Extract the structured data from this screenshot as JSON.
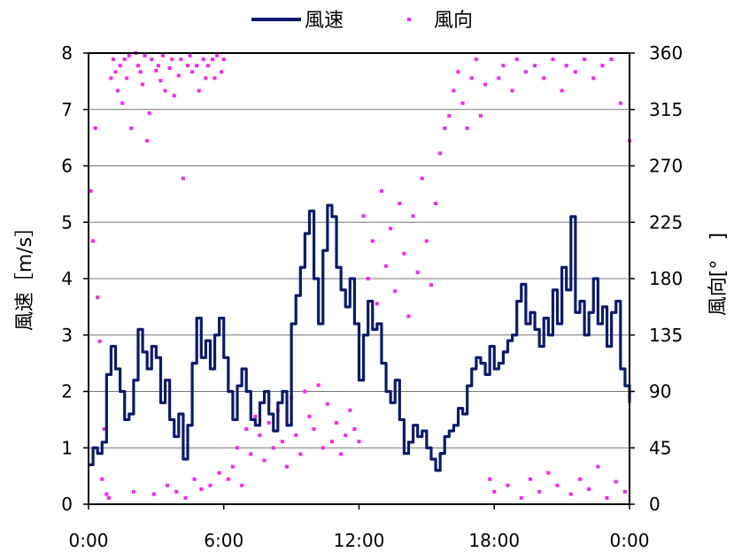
{
  "chart_data": {
    "type": "line",
    "legend": {
      "placement": "top-center",
      "entries": [
        {
          "label": "風速",
          "kind": "line",
          "color": "#0a1a6e"
        },
        {
          "label": "風向",
          "kind": "marker",
          "color": "#ff22ee"
        }
      ]
    },
    "x": {
      "unit": "hour",
      "range": [
        0,
        24
      ],
      "tick_labels": [
        "0:00",
        "6:00",
        "12:00",
        "18:00",
        "0:00"
      ]
    },
    "y_left": {
      "label": "風速［m/s］",
      "range": [
        0,
        8
      ],
      "ticks": [
        0,
        1,
        2,
        3,
        4,
        5,
        6,
        7,
        8
      ]
    },
    "y_right": {
      "label": "風向[°　]",
      "range": [
        0,
        360
      ],
      "ticks": [
        0,
        45,
        90,
        135,
        180,
        225,
        270,
        315,
        360
      ]
    },
    "grid": {
      "horizontal": true,
      "vertical": false
    },
    "series": [
      {
        "name": "風速",
        "axis": "left",
        "type": "line",
        "color": "#0a1a6e",
        "points": [
          [
            0.0,
            0.7
          ],
          [
            0.2,
            1.0
          ],
          [
            0.4,
            0.9
          ],
          [
            0.6,
            1.1
          ],
          [
            0.8,
            2.3
          ],
          [
            1.0,
            2.8
          ],
          [
            1.2,
            2.4
          ],
          [
            1.4,
            2.0
          ],
          [
            1.6,
            1.5
          ],
          [
            1.8,
            1.6
          ],
          [
            2.0,
            2.2
          ],
          [
            2.2,
            3.1
          ],
          [
            2.4,
            2.7
          ],
          [
            2.6,
            2.4
          ],
          [
            2.8,
            2.8
          ],
          [
            3.0,
            2.6
          ],
          [
            3.2,
            1.8
          ],
          [
            3.4,
            2.2
          ],
          [
            3.6,
            1.5
          ],
          [
            3.8,
            1.2
          ],
          [
            4.0,
            1.6
          ],
          [
            4.2,
            0.8
          ],
          [
            4.4,
            1.4
          ],
          [
            4.6,
            2.5
          ],
          [
            4.8,
            3.3
          ],
          [
            5.0,
            2.6
          ],
          [
            5.2,
            2.9
          ],
          [
            5.4,
            2.4
          ],
          [
            5.6,
            3.0
          ],
          [
            5.8,
            3.3
          ],
          [
            6.0,
            2.6
          ],
          [
            6.2,
            2.0
          ],
          [
            6.4,
            1.5
          ],
          [
            6.6,
            2.1
          ],
          [
            6.8,
            2.4
          ],
          [
            7.0,
            2.0
          ],
          [
            7.2,
            1.5
          ],
          [
            7.4,
            1.4
          ],
          [
            7.6,
            1.8
          ],
          [
            7.8,
            2.0
          ],
          [
            8.0,
            1.6
          ],
          [
            8.2,
            1.3
          ],
          [
            8.4,
            1.8
          ],
          [
            8.6,
            2.0
          ],
          [
            8.8,
            1.4
          ],
          [
            9.0,
            3.2
          ],
          [
            9.2,
            3.7
          ],
          [
            9.4,
            4.2
          ],
          [
            9.6,
            4.8
          ],
          [
            9.8,
            5.2
          ],
          [
            10.0,
            4.0
          ],
          [
            10.2,
            3.2
          ],
          [
            10.4,
            4.5
          ],
          [
            10.6,
            5.3
          ],
          [
            10.8,
            5.1
          ],
          [
            11.0,
            4.2
          ],
          [
            11.2,
            3.8
          ],
          [
            11.4,
            3.5
          ],
          [
            11.6,
            4.0
          ],
          [
            11.8,
            3.2
          ],
          [
            12.0,
            2.2
          ],
          [
            12.2,
            3.0
          ],
          [
            12.4,
            3.6
          ],
          [
            12.6,
            3.1
          ],
          [
            12.8,
            3.2
          ],
          [
            13.0,
            2.5
          ],
          [
            13.2,
            2.0
          ],
          [
            13.4,
            1.8
          ],
          [
            13.6,
            2.2
          ],
          [
            13.8,
            1.5
          ],
          [
            14.0,
            0.9
          ],
          [
            14.2,
            1.1
          ],
          [
            14.4,
            1.4
          ],
          [
            14.6,
            1.2
          ],
          [
            14.8,
            1.3
          ],
          [
            15.0,
            1.0
          ],
          [
            15.2,
            0.8
          ],
          [
            15.4,
            0.6
          ],
          [
            15.6,
            0.9
          ],
          [
            15.8,
            1.2
          ],
          [
            16.0,
            1.3
          ],
          [
            16.2,
            1.4
          ],
          [
            16.4,
            1.7
          ],
          [
            16.6,
            1.6
          ],
          [
            16.8,
            2.1
          ],
          [
            17.0,
            2.4
          ],
          [
            17.2,
            2.6
          ],
          [
            17.4,
            2.5
          ],
          [
            17.6,
            2.3
          ],
          [
            17.8,
            2.8
          ],
          [
            18.0,
            2.4
          ],
          [
            18.2,
            2.5
          ],
          [
            18.4,
            2.7
          ],
          [
            18.6,
            2.9
          ],
          [
            18.8,
            3.0
          ],
          [
            19.0,
            3.6
          ],
          [
            19.2,
            3.9
          ],
          [
            19.4,
            3.2
          ],
          [
            19.6,
            3.4
          ],
          [
            19.8,
            3.1
          ],
          [
            20.0,
            2.8
          ],
          [
            20.2,
            3.3
          ],
          [
            20.4,
            3.0
          ],
          [
            20.6,
            3.8
          ],
          [
            20.8,
            3.2
          ],
          [
            21.0,
            4.2
          ],
          [
            21.2,
            3.8
          ],
          [
            21.4,
            5.1
          ],
          [
            21.6,
            3.4
          ],
          [
            21.8,
            3.6
          ],
          [
            22.0,
            3.0
          ],
          [
            22.2,
            3.4
          ],
          [
            22.4,
            4.0
          ],
          [
            22.6,
            3.2
          ],
          [
            22.8,
            3.5
          ],
          [
            23.0,
            2.8
          ],
          [
            23.2,
            3.4
          ],
          [
            23.4,
            3.6
          ],
          [
            23.6,
            2.4
          ],
          [
            23.8,
            2.1
          ],
          [
            24.0,
            1.8
          ]
        ]
      },
      {
        "name": "風向",
        "axis": "right",
        "type": "scatter",
        "color": "#ff22ee",
        "points": [
          [
            0.1,
            250
          ],
          [
            0.2,
            210
          ],
          [
            0.3,
            300
          ],
          [
            0.4,
            165
          ],
          [
            0.5,
            130
          ],
          [
            0.6,
            20
          ],
          [
            0.7,
            60
          ],
          [
            0.8,
            8
          ],
          [
            0.9,
            5
          ],
          [
            1.0,
            340
          ],
          [
            1.1,
            355
          ],
          [
            1.2,
            345
          ],
          [
            1.3,
            330
          ],
          [
            1.4,
            350
          ],
          [
            1.5,
            320
          ],
          [
            1.6,
            355
          ],
          [
            1.7,
            340
          ],
          [
            1.8,
            358
          ],
          [
            1.9,
            300
          ],
          [
            2.0,
            10
          ],
          [
            2.1,
            360
          ],
          [
            2.2,
            350
          ],
          [
            2.3,
            345
          ],
          [
            2.4,
            335
          ],
          [
            2.5,
            358
          ],
          [
            2.6,
            290
          ],
          [
            2.7,
            312
          ],
          [
            2.8,
            355
          ],
          [
            2.9,
            8
          ],
          [
            3.0,
            346
          ],
          [
            3.1,
            350
          ],
          [
            3.2,
            338
          ],
          [
            3.3,
            358
          ],
          [
            3.4,
            330
          ],
          [
            3.5,
            15
          ],
          [
            3.6,
            348
          ],
          [
            3.7,
            355
          ],
          [
            3.8,
            326
          ],
          [
            3.9,
            10
          ],
          [
            4.0,
            342
          ],
          [
            4.1,
            355
          ],
          [
            4.2,
            260
          ],
          [
            4.3,
            5
          ],
          [
            4.4,
            350
          ],
          [
            4.5,
            358
          ],
          [
            4.6,
            345
          ],
          [
            4.7,
            20
          ],
          [
            4.8,
            350
          ],
          [
            4.9,
            330
          ],
          [
            5.0,
            12
          ],
          [
            5.1,
            355
          ],
          [
            5.2,
            340
          ],
          [
            5.3,
            350
          ],
          [
            5.4,
            15
          ],
          [
            5.5,
            355
          ],
          [
            5.6,
            340
          ],
          [
            5.7,
            358
          ],
          [
            5.8,
            25
          ],
          [
            5.9,
            345
          ],
          [
            6.0,
            355
          ],
          [
            6.2,
            20
          ],
          [
            6.4,
            30
          ],
          [
            6.6,
            45
          ],
          [
            6.8,
            15
          ],
          [
            7.0,
            60
          ],
          [
            7.2,
            40
          ],
          [
            7.4,
            70
          ],
          [
            7.6,
            55
          ],
          [
            7.8,
            35
          ],
          [
            8.0,
            65
          ],
          [
            8.2,
            45
          ],
          [
            8.4,
            75
          ],
          [
            8.6,
            50
          ],
          [
            8.8,
            30
          ],
          [
            9.0,
            85
          ],
          [
            9.2,
            55
          ],
          [
            9.4,
            40
          ],
          [
            9.6,
            90
          ],
          [
            9.8,
            70
          ],
          [
            10.0,
            60
          ],
          [
            10.2,
            95
          ],
          [
            10.4,
            45
          ],
          [
            10.6,
            80
          ],
          [
            10.8,
            50
          ],
          [
            11.0,
            65
          ],
          [
            11.2,
            40
          ],
          [
            11.4,
            55
          ],
          [
            11.6,
            75
          ],
          [
            11.8,
            60
          ],
          [
            12.0,
            50
          ],
          [
            12.2,
            230
          ],
          [
            12.4,
            180
          ],
          [
            12.6,
            210
          ],
          [
            12.8,
            160
          ],
          [
            13.0,
            250
          ],
          [
            13.2,
            190
          ],
          [
            13.4,
            220
          ],
          [
            13.6,
            170
          ],
          [
            13.8,
            240
          ],
          [
            14.0,
            200
          ],
          [
            14.2,
            150
          ],
          [
            14.4,
            230
          ],
          [
            14.6,
            185
          ],
          [
            14.8,
            260
          ],
          [
            15.0,
            210
          ],
          [
            15.2,
            175
          ],
          [
            15.4,
            240
          ],
          [
            15.6,
            280
          ],
          [
            15.8,
            300
          ],
          [
            16.0,
            310
          ],
          [
            16.2,
            330
          ],
          [
            16.4,
            345
          ],
          [
            16.6,
            320
          ],
          [
            16.8,
            300
          ],
          [
            17.0,
            340
          ],
          [
            17.2,
            355
          ],
          [
            17.4,
            310
          ],
          [
            17.6,
            335
          ],
          [
            17.8,
            20
          ],
          [
            18.0,
            10
          ],
          [
            18.2,
            340
          ],
          [
            18.4,
            350
          ],
          [
            18.6,
            15
          ],
          [
            18.8,
            330
          ],
          [
            19.0,
            355
          ],
          [
            19.2,
            5
          ],
          [
            19.4,
            345
          ],
          [
            19.6,
            20
          ],
          [
            19.8,
            350
          ],
          [
            20.0,
            10
          ],
          [
            20.2,
            340
          ],
          [
            20.4,
            25
          ],
          [
            20.6,
            355
          ],
          [
            20.8,
            15
          ],
          [
            21.0,
            330
          ],
          [
            21.2,
            350
          ],
          [
            21.4,
            8
          ],
          [
            21.6,
            345
          ],
          [
            21.8,
            20
          ],
          [
            22.0,
            355
          ],
          [
            22.2,
            12
          ],
          [
            22.4,
            340
          ],
          [
            22.6,
            30
          ],
          [
            22.8,
            350
          ],
          [
            23.0,
            5
          ],
          [
            23.2,
            355
          ],
          [
            23.4,
            18
          ],
          [
            23.6,
            320
          ],
          [
            23.8,
            10
          ],
          [
            24.0,
            290
          ]
        ]
      }
    ]
  }
}
